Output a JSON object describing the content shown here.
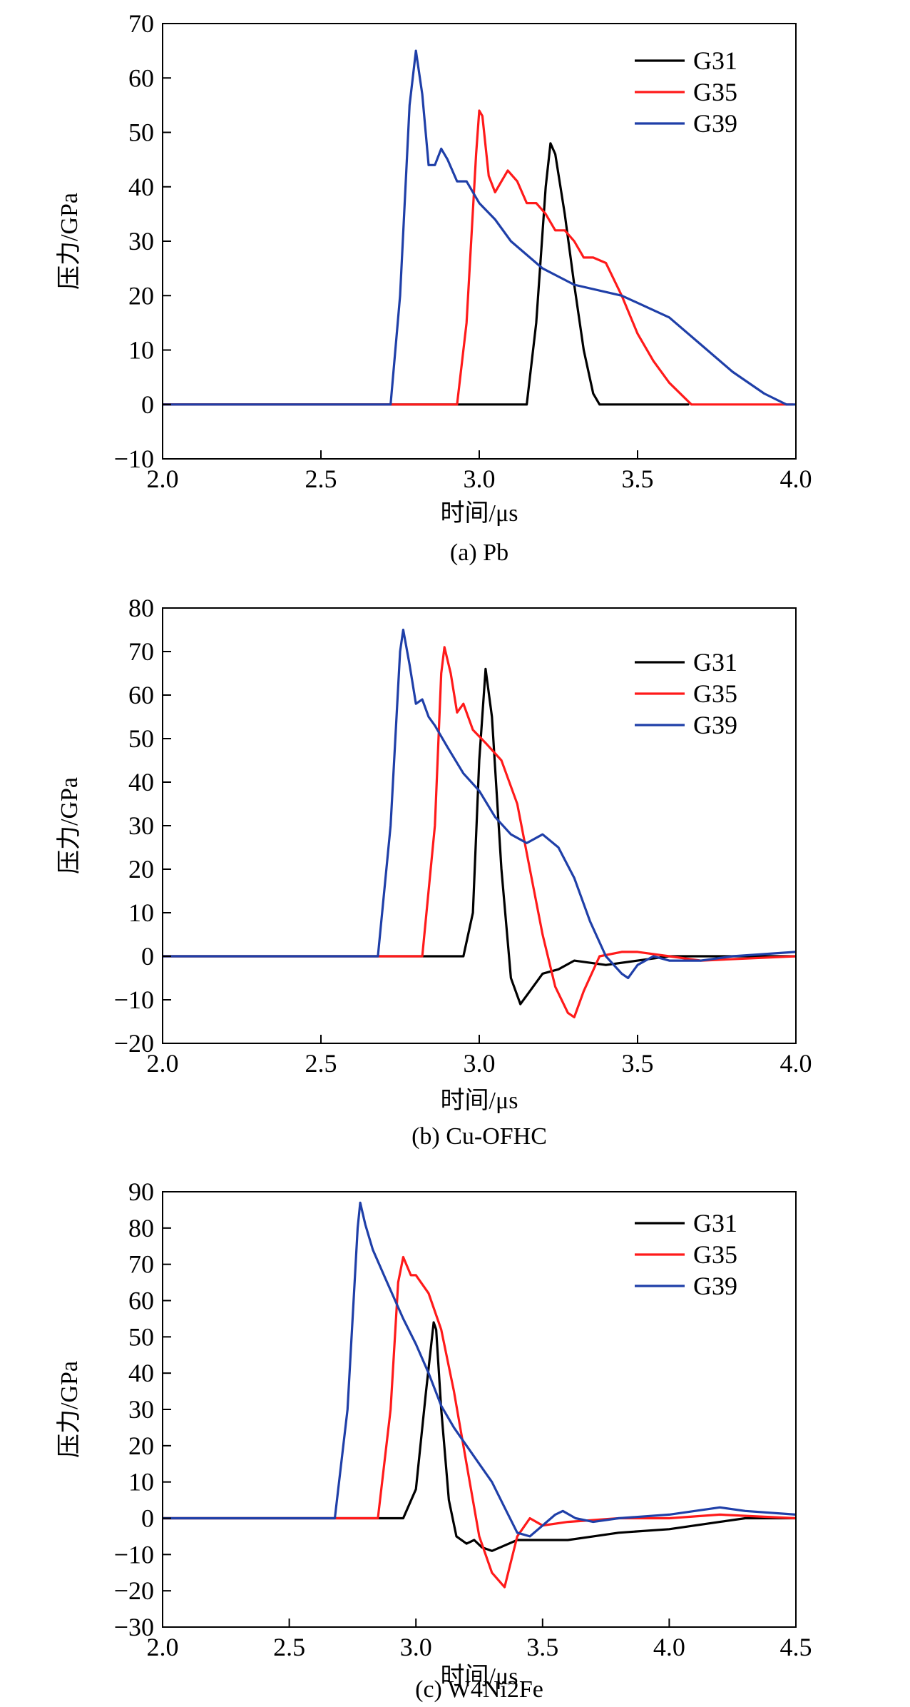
{
  "colors": {
    "G31": "#000000",
    "G35": "#ff1a1a",
    "G39": "#1f3fa8"
  },
  "chart_data": [
    {
      "type": "line",
      "caption": "(a) Pb",
      "xlabel": "时间/μs",
      "ylabel": "压力/GPa",
      "xlim": [
        2.0,
        4.0
      ],
      "ylim": [
        -10,
        70
      ],
      "xticks": [
        "2.0",
        "2.5",
        "3.0",
        "3.5",
        "4.0"
      ],
      "yticks": [
        "−10",
        "0",
        "10",
        "20",
        "30",
        "40",
        "50",
        "60",
        "70"
      ],
      "legend": [
        "G31",
        "G35",
        "G39"
      ],
      "legend_position": "top-right",
      "grid": false,
      "series": [
        {
          "name": "G31",
          "x": [
            2.0,
            3.15,
            3.18,
            3.21,
            3.225,
            3.24,
            3.27,
            3.3,
            3.33,
            3.36,
            3.38,
            3.66
          ],
          "y": [
            0,
            0,
            15,
            40,
            48,
            46,
            35,
            22,
            10,
            2,
            0,
            0
          ]
        },
        {
          "name": "G35",
          "x": [
            2.0,
            2.93,
            2.96,
            2.99,
            3.0,
            3.01,
            3.03,
            3.05,
            3.09,
            3.12,
            3.15,
            3.18,
            3.21,
            3.24,
            3.27,
            3.3,
            3.33,
            3.36,
            3.4,
            3.45,
            3.5,
            3.55,
            3.6,
            3.67,
            3.99
          ],
          "y": [
            0,
            0,
            15,
            46,
            54,
            53,
            42,
            39,
            43,
            41,
            37,
            37,
            35,
            32,
            32,
            30,
            27,
            27,
            26,
            20,
            13,
            8,
            4,
            0,
            0
          ]
        },
        {
          "name": "G39",
          "x": [
            2.0,
            2.72,
            2.75,
            2.78,
            2.8,
            2.82,
            2.84,
            2.86,
            2.88,
            2.9,
            2.93,
            2.96,
            3.0,
            3.05,
            3.1,
            3.2,
            3.3,
            3.45,
            3.6,
            3.7,
            3.8,
            3.9,
            3.97,
            4.0
          ],
          "y": [
            0,
            0,
            20,
            55,
            65,
            57,
            44,
            44,
            47,
            45,
            41,
            41,
            37,
            34,
            30,
            25,
            22,
            20,
            16,
            11,
            6,
            2,
            0,
            0
          ]
        }
      ]
    },
    {
      "type": "line",
      "caption": "(b) Cu-OFHC",
      "xlabel": "时间/μs",
      "ylabel": "压力/GPa",
      "xlim": [
        2.0,
        4.0
      ],
      "ylim": [
        -20,
        80
      ],
      "xticks": [
        "2.0",
        "2.5",
        "3.0",
        "3.5",
        "4.0"
      ],
      "yticks": [
        "−20",
        "−10",
        "0",
        "10",
        "20",
        "30",
        "40",
        "50",
        "60",
        "70",
        "80"
      ],
      "legend": [
        "G31",
        "G35",
        "G39"
      ],
      "legend_position": "top-right",
      "grid": false,
      "series": [
        {
          "name": "G31",
          "x": [
            2.0,
            2.95,
            2.98,
            3.0,
            3.02,
            3.04,
            3.07,
            3.1,
            3.13,
            3.15,
            3.2,
            3.25,
            3.3,
            3.4,
            3.5,
            3.6,
            4.0
          ],
          "y": [
            0,
            0,
            10,
            45,
            66,
            55,
            20,
            -5,
            -11,
            -9,
            -4,
            -3,
            -1,
            -2,
            -1,
            0,
            0
          ]
        },
        {
          "name": "G35",
          "x": [
            2.0,
            2.82,
            2.86,
            2.88,
            2.89,
            2.91,
            2.93,
            2.95,
            2.98,
            3.02,
            3.07,
            3.12,
            3.16,
            3.2,
            3.24,
            3.28,
            3.3,
            3.33,
            3.38,
            3.45,
            3.5,
            3.6,
            3.7,
            4.0
          ],
          "y": [
            0,
            0,
            30,
            65,
            71,
            65,
            56,
            58,
            52,
            49,
            45,
            35,
            20,
            5,
            -7,
            -13,
            -14,
            -8,
            0,
            1,
            1,
            0,
            -1,
            0
          ]
        },
        {
          "name": "G39",
          "x": [
            2.0,
            2.68,
            2.72,
            2.75,
            2.76,
            2.78,
            2.8,
            2.82,
            2.84,
            2.86,
            2.9,
            2.95,
            3.0,
            3.05,
            3.1,
            3.15,
            3.2,
            3.25,
            3.3,
            3.35,
            3.4,
            3.45,
            3.47,
            3.5,
            3.55,
            3.6,
            3.7,
            3.8,
            4.0
          ],
          "y": [
            0,
            0,
            30,
            70,
            75,
            67,
            58,
            59,
            55,
            53,
            48,
            42,
            38,
            32,
            28,
            26,
            28,
            25,
            18,
            8,
            0,
            -4,
            -5,
            -2,
            0,
            -1,
            -1,
            0,
            1
          ]
        }
      ]
    },
    {
      "type": "line",
      "caption": "(c) W4Ni2Fe",
      "xlabel": "时间/μs",
      "ylabel": "压力/GPa",
      "xlim": [
        2.0,
        4.5
      ],
      "ylim": [
        -30,
        90
      ],
      "xticks": [
        "2.0",
        "2.5",
        "3.0",
        "3.5",
        "4.0",
        "4.5"
      ],
      "yticks": [
        "−30",
        "−20",
        "−10",
        "0",
        "10",
        "20",
        "30",
        "40",
        "50",
        "60",
        "70",
        "80",
        "90"
      ],
      "legend": [
        "G31",
        "G35",
        "G39"
      ],
      "legend_position": "top-right",
      "grid": false,
      "series": [
        {
          "name": "G31",
          "x": [
            2.0,
            2.95,
            3.0,
            3.04,
            3.07,
            3.08,
            3.1,
            3.13,
            3.16,
            3.2,
            3.23,
            3.26,
            3.3,
            3.4,
            3.5,
            3.6,
            3.7,
            3.8,
            4.0,
            4.2,
            4.3,
            4.5
          ],
          "y": [
            0,
            0,
            8,
            35,
            54,
            52,
            30,
            5,
            -5,
            -7,
            -6,
            -8,
            -9,
            -6,
            -6,
            -6,
            -5,
            -4,
            -3,
            -1,
            0,
            0
          ]
        },
        {
          "name": "G35",
          "x": [
            2.0,
            2.85,
            2.9,
            2.93,
            2.95,
            2.98,
            3.0,
            3.05,
            3.1,
            3.15,
            3.2,
            3.25,
            3.3,
            3.35,
            3.4,
            3.45,
            3.5,
            3.6,
            3.8,
            4.0,
            4.2,
            4.5
          ],
          "y": [
            0,
            0,
            30,
            65,
            72,
            67,
            67,
            62,
            52,
            35,
            15,
            -5,
            -15,
            -19,
            -5,
            0,
            -2,
            -1,
            0,
            0,
            1,
            0
          ]
        },
        {
          "name": "G39",
          "x": [
            2.0,
            2.68,
            2.73,
            2.77,
            2.78,
            2.8,
            2.83,
            2.88,
            2.95,
            3.0,
            3.05,
            3.1,
            3.15,
            3.2,
            3.25,
            3.3,
            3.35,
            3.4,
            3.45,
            3.5,
            3.55,
            3.58,
            3.63,
            3.7,
            3.8,
            4.0,
            4.2,
            4.3,
            4.5
          ],
          "y": [
            0,
            0,
            30,
            80,
            87,
            81,
            74,
            66,
            55,
            48,
            40,
            31,
            25,
            20,
            15,
            10,
            3,
            -4,
            -5,
            -2,
            1,
            2,
            0,
            -1,
            0,
            1,
            3,
            2,
            1
          ]
        }
      ]
    }
  ]
}
